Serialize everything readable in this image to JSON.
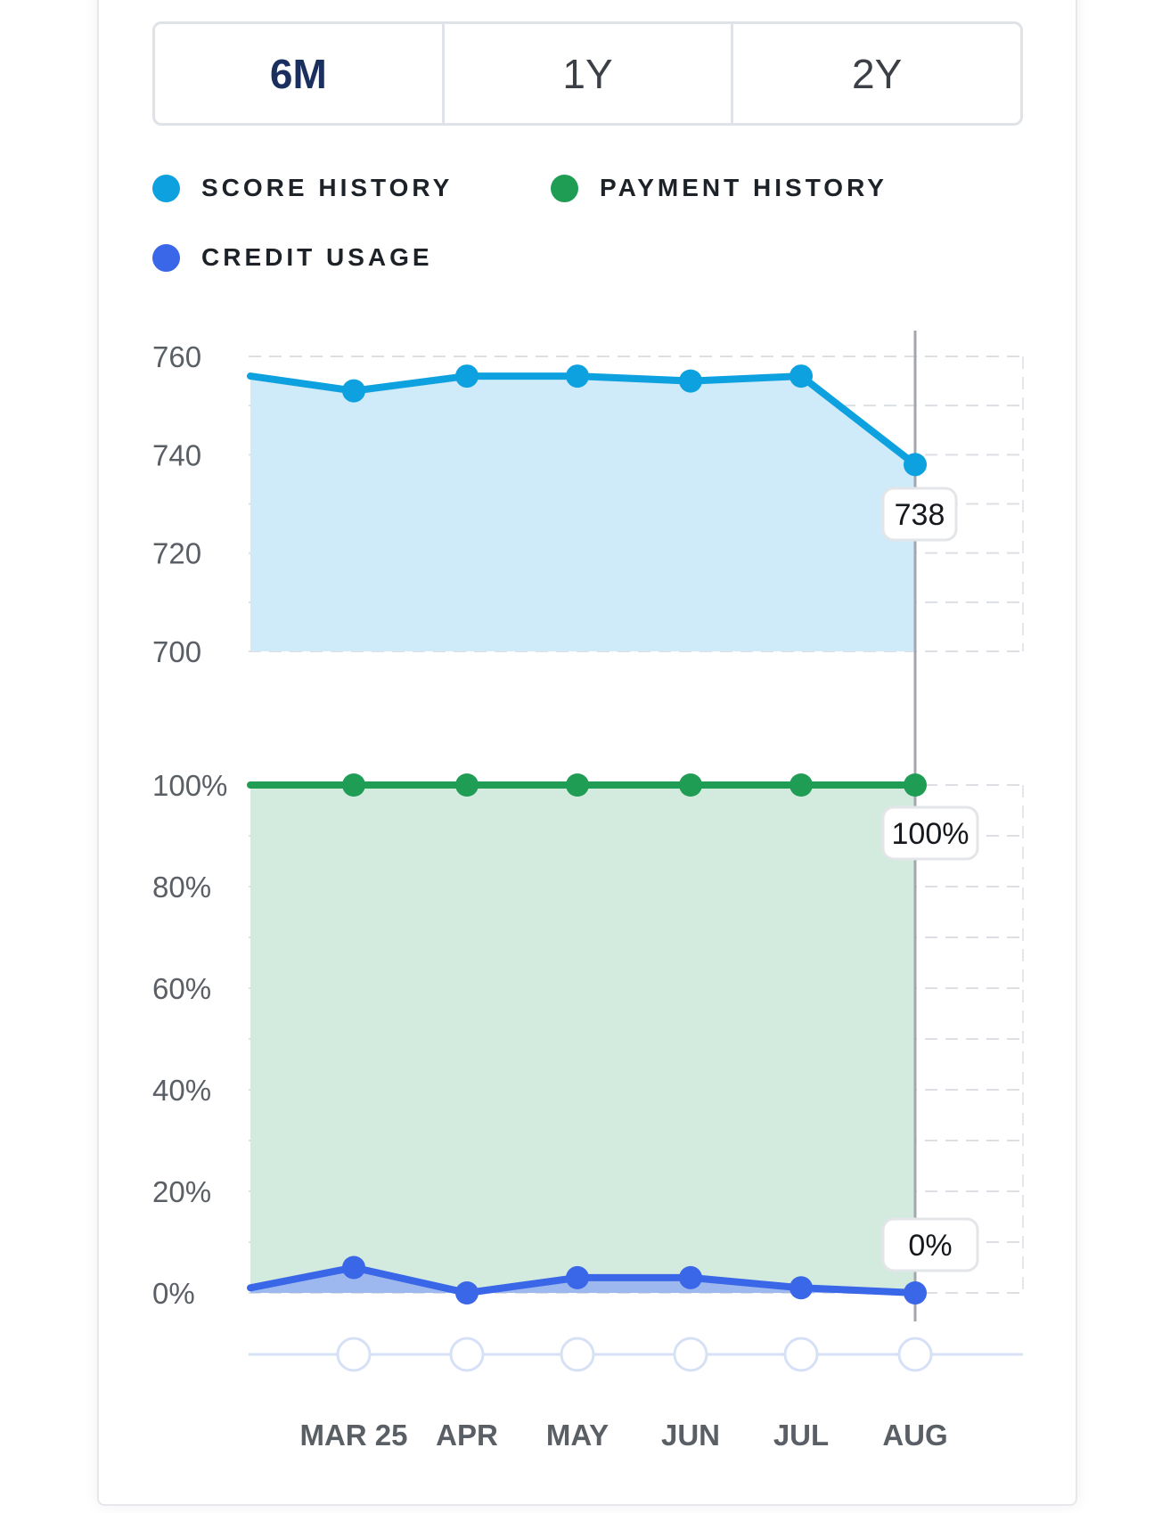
{
  "range_selector": {
    "options": [
      "6M",
      "1Y",
      "2Y"
    ],
    "selected": "6M"
  },
  "legend": [
    {
      "label": "SCORE HISTORY",
      "color": "#0ea1e0"
    },
    {
      "label": "PAYMENT HISTORY",
      "color": "#1f9d55"
    },
    {
      "label": "CREDIT USAGE",
      "color": "#3a66e8"
    }
  ],
  "chart_data": [
    {
      "type": "area",
      "name": "score-history",
      "categories": [
        "MAR 25",
        "APR",
        "MAY",
        "JUN",
        "JUL",
        "AUG"
      ],
      "series": [
        {
          "name": "SCORE HISTORY",
          "values": [
            753,
            756,
            756,
            755,
            756,
            738
          ],
          "leading_value": 756
        }
      ],
      "ylim": [
        700,
        760
      ],
      "yticks": [
        "760",
        "740",
        "720",
        "700"
      ],
      "tooltip": "738",
      "grid": true
    },
    {
      "type": "area",
      "name": "payment-and-usage",
      "categories": [
        "MAR 25",
        "APR",
        "MAY",
        "JUN",
        "JUL",
        "AUG"
      ],
      "series": [
        {
          "name": "PAYMENT HISTORY",
          "values": [
            100,
            100,
            100,
            100,
            100,
            100
          ],
          "leading_value": 100
        },
        {
          "name": "CREDIT USAGE",
          "values": [
            5,
            0,
            3,
            3,
            1,
            0
          ],
          "leading_value": 1
        }
      ],
      "ylim": [
        0,
        100
      ],
      "yticks": [
        "100%",
        "80%",
        "60%",
        "40%",
        "20%",
        "0%"
      ],
      "tooltips": [
        "100%",
        "0%"
      ],
      "grid": true
    }
  ],
  "colors": {
    "score_line": "#0ea1e0",
    "score_fill": "#cfeaf8",
    "payment_line": "#1f9d55",
    "payment_fill": "#d3eadf",
    "usage_line": "#3a66e8",
    "usage_fill": "#9db8ee"
  }
}
